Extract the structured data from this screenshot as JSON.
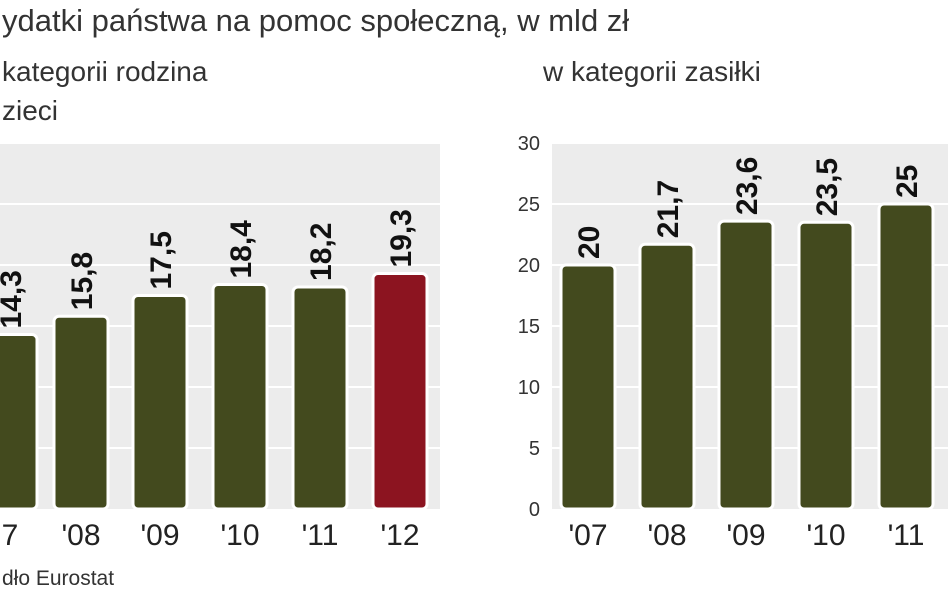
{
  "title": "ydatki państwa na pomoc społeczną, w mld zł",
  "source": "dło Eurostat",
  "colors": {
    "bar": "#434a1e",
    "highlight": "#8c1420",
    "panel_bg": "#ececec",
    "grid": "#ffffff"
  },
  "chart_data": [
    {
      "type": "bar",
      "title": "kategorii rodzina",
      "subtitle": "zieci",
      "categories": [
        "7",
        "'08",
        "'09",
        "'10",
        "'11",
        "'12"
      ],
      "values": [
        14.3,
        15.8,
        17.5,
        18.4,
        18.2,
        19.3
      ],
      "value_labels": [
        "14,3",
        "15,8",
        "17,5",
        "18,4",
        "18,2",
        "19,3"
      ],
      "highlight_index": 5,
      "ylim": [
        0,
        30
      ],
      "yticks": [],
      "grid": true
    },
    {
      "type": "bar",
      "title": "w kategorii zasiłki",
      "categories": [
        "'07",
        "'08",
        "'09",
        "'10",
        "'11"
      ],
      "values": [
        20,
        21.7,
        23.6,
        23.5,
        25
      ],
      "value_labels": [
        "20",
        "21,7",
        "23,6",
        "23,5",
        "25"
      ],
      "ylim": [
        0,
        30
      ],
      "yticks": [
        "0",
        "5",
        "10",
        "15",
        "20",
        "25",
        "30"
      ],
      "grid": true
    }
  ]
}
